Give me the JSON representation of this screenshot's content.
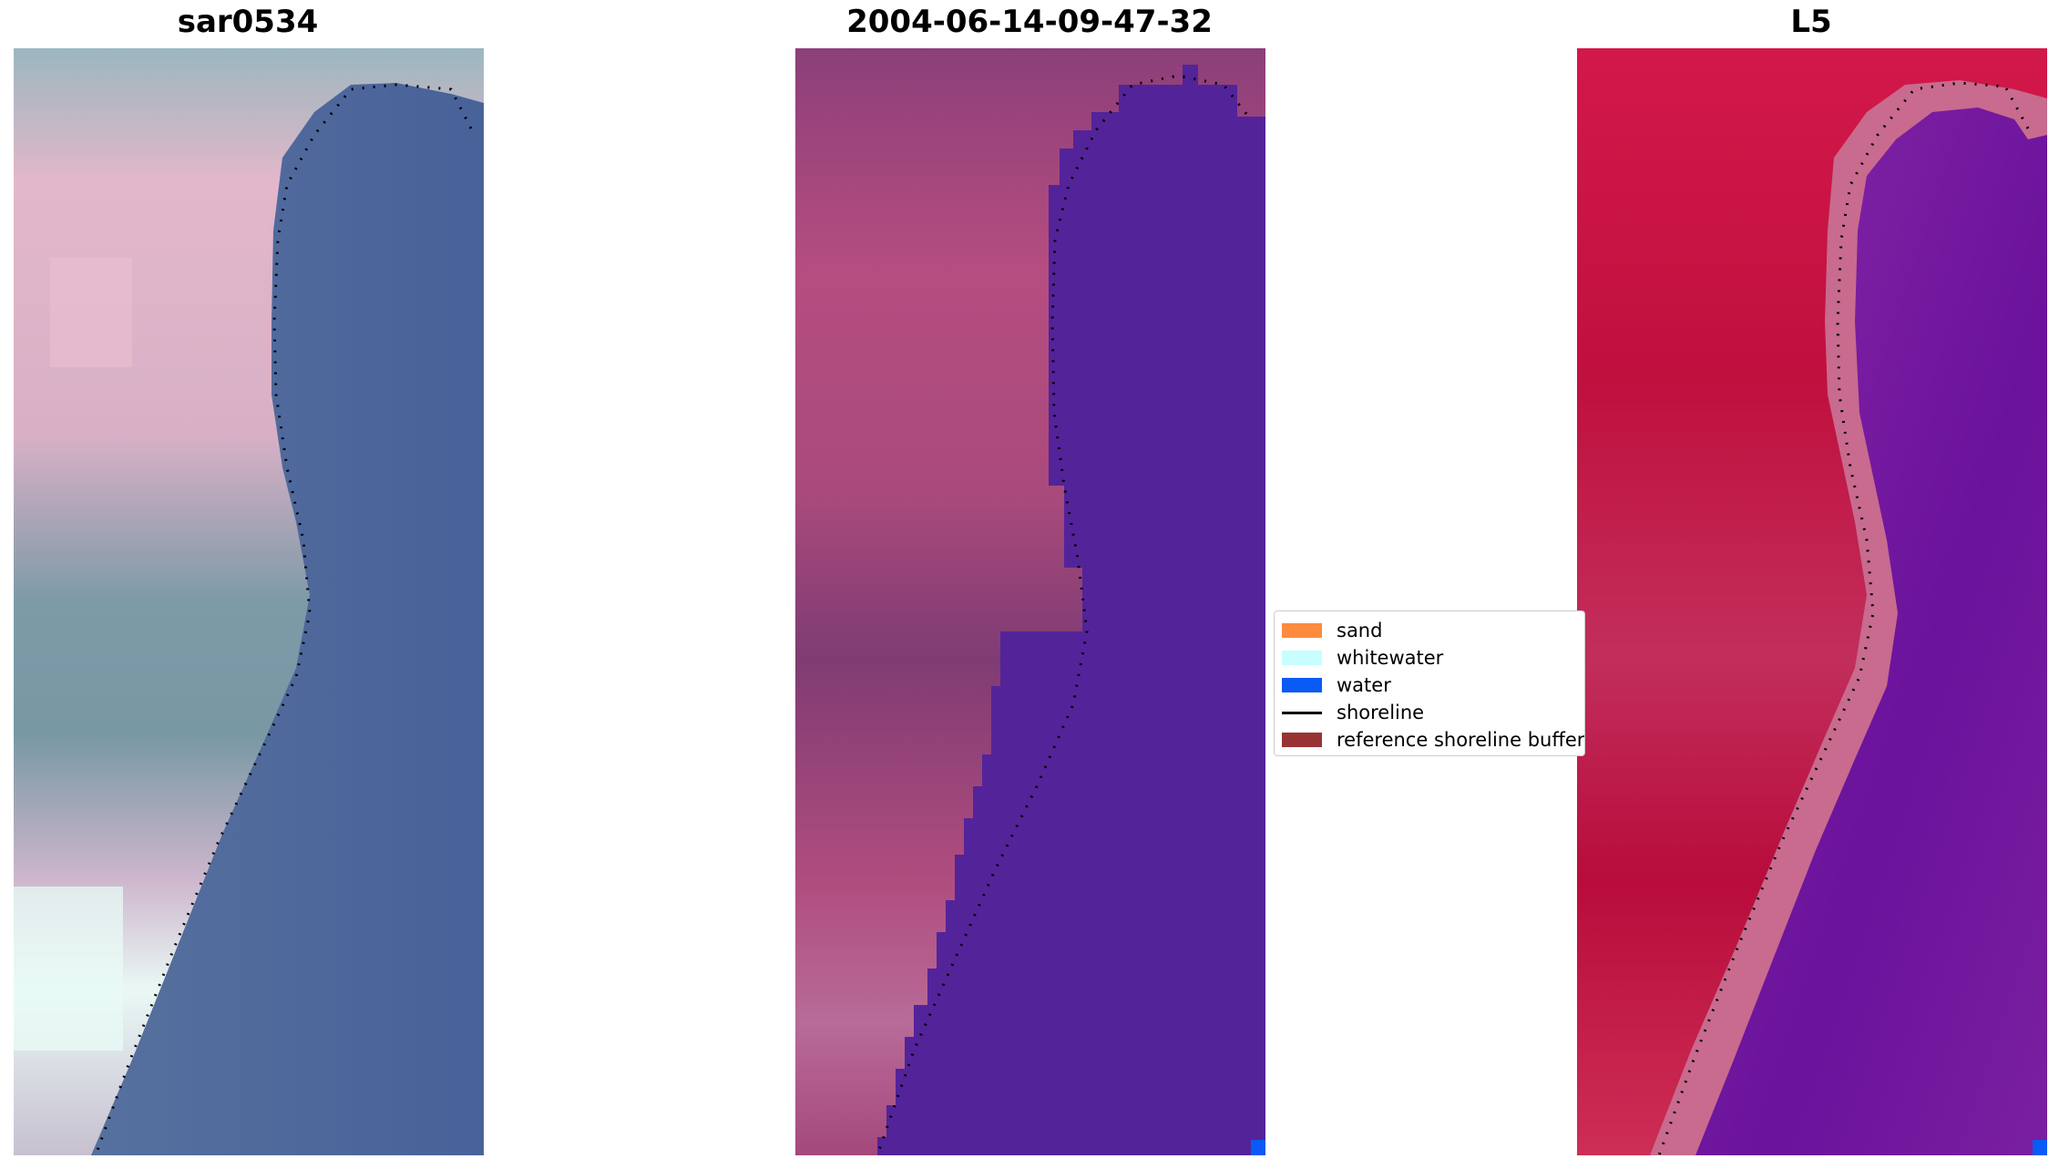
{
  "panels": [
    {
      "title": "sar0534"
    },
    {
      "title": "2004-06-14-09-47-32"
    },
    {
      "title": "L5"
    }
  ],
  "legend": {
    "items": [
      {
        "label": "sand",
        "color": "#fd8b3d",
        "kind": "swatch"
      },
      {
        "label": "whitewater",
        "color": "#c8fefe",
        "kind": "swatch"
      },
      {
        "label": "water",
        "color": "#0a5af5",
        "kind": "swatch"
      },
      {
        "label": "shoreline",
        "color": "#000000",
        "kind": "line"
      },
      {
        "label": "reference shoreline buffer",
        "color": "#993333",
        "kind": "swatch"
      }
    ]
  },
  "colors": {
    "water_rgb": "#4a6496",
    "land_rgb": "#d7b4c8",
    "water_classified": "#53239a",
    "land_classified": "#b04c7e",
    "water_index": "#7a1fa0",
    "land_index": "#c4103c"
  }
}
